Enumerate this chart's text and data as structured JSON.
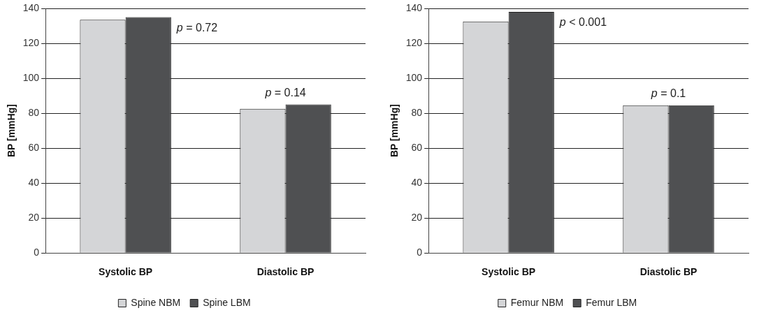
{
  "chart_data": [
    {
      "type": "bar",
      "ylabel": "BP [mmHg]",
      "categories": [
        "Systolic BP",
        "Diastolic BP"
      ],
      "series": [
        {
          "name": "Spine NBM",
          "color": "#d4d5d7",
          "values": [
            133.5,
            82.5
          ]
        },
        {
          "name": "Spine LBM",
          "color": "#4f5052",
          "values": [
            135,
            85
          ]
        }
      ],
      "ylim": [
        0,
        140
      ],
      "yticks": [
        0,
        20,
        40,
        60,
        80,
        100,
        120,
        140
      ],
      "grid": "y",
      "legend": "bottom",
      "annotations": [
        "p = 0.72",
        "p = 0.14"
      ]
    },
    {
      "type": "bar",
      "ylabel": "BP [mmHg]",
      "categories": [
        "Systolic BP",
        "Diastolic BP"
      ],
      "series": [
        {
          "name": "Femur NBM",
          "color": "#d4d5d7",
          "values": [
            132.5,
            84.5
          ]
        },
        {
          "name": "Femur LBM",
          "color": "#4f5052",
          "values": [
            138,
            84.5
          ]
        }
      ],
      "ylim": [
        0,
        140
      ],
      "yticks": [
        0,
        20,
        40,
        60,
        80,
        100,
        120,
        140
      ],
      "grid": "y",
      "legend": "bottom",
      "annotations": [
        "p < 0.001",
        "p = 0.1"
      ]
    }
  ]
}
